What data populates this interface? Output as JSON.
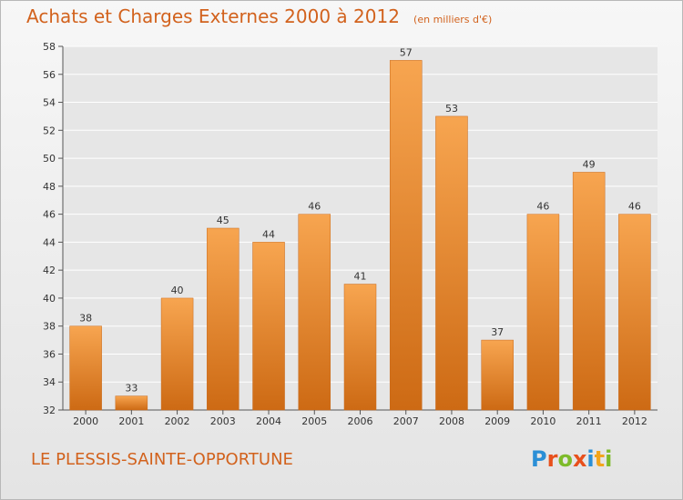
{
  "header": {
    "title": "Achats et Charges Externes 2000 à 2012",
    "subtitle": "(en milliers d'€)"
  },
  "footer": {
    "place": "LE PLESSIS-SAINTE-OPPORTUNE",
    "logo_text": "Proxiti",
    "logo_letters": [
      {
        "ch": "P",
        "color": "#2b8fd6"
      },
      {
        "ch": "r",
        "color": "#e8501c"
      },
      {
        "ch": "o",
        "color": "#7dbb2a"
      },
      {
        "ch": "x",
        "color": "#e8501c"
      },
      {
        "ch": "i",
        "color": "#2b8fd6"
      },
      {
        "ch": "t",
        "color": "#f2a51c"
      },
      {
        "ch": "i",
        "color": "#7dbb2a"
      }
    ]
  },
  "colors": {
    "title": "#d2621d",
    "bar_light": "#f7a550",
    "bar_dark": "#e07a1e",
    "bar_bottom": "#cd6a14",
    "text": "#333333",
    "grid": "#ffffff"
  },
  "chart_data": {
    "type": "bar",
    "categories": [
      "2000",
      "2001",
      "2002",
      "2003",
      "2004",
      "2005",
      "2006",
      "2007",
      "2008",
      "2009",
      "2010",
      "2011",
      "2012"
    ],
    "values": [
      38,
      33,
      40,
      45,
      44,
      46,
      41,
      57,
      53,
      37,
      46,
      49,
      46
    ],
    "title": "Achats et Charges Externes 2000 à 2012",
    "subtitle": "(en milliers d'€)",
    "xlabel": "",
    "ylabel": "",
    "ylim": [
      32,
      58
    ],
    "yticks": [
      32,
      34,
      36,
      38,
      40,
      42,
      44,
      46,
      48,
      50,
      52,
      54,
      56,
      58
    ],
    "grid": true,
    "data_labels": true
  }
}
